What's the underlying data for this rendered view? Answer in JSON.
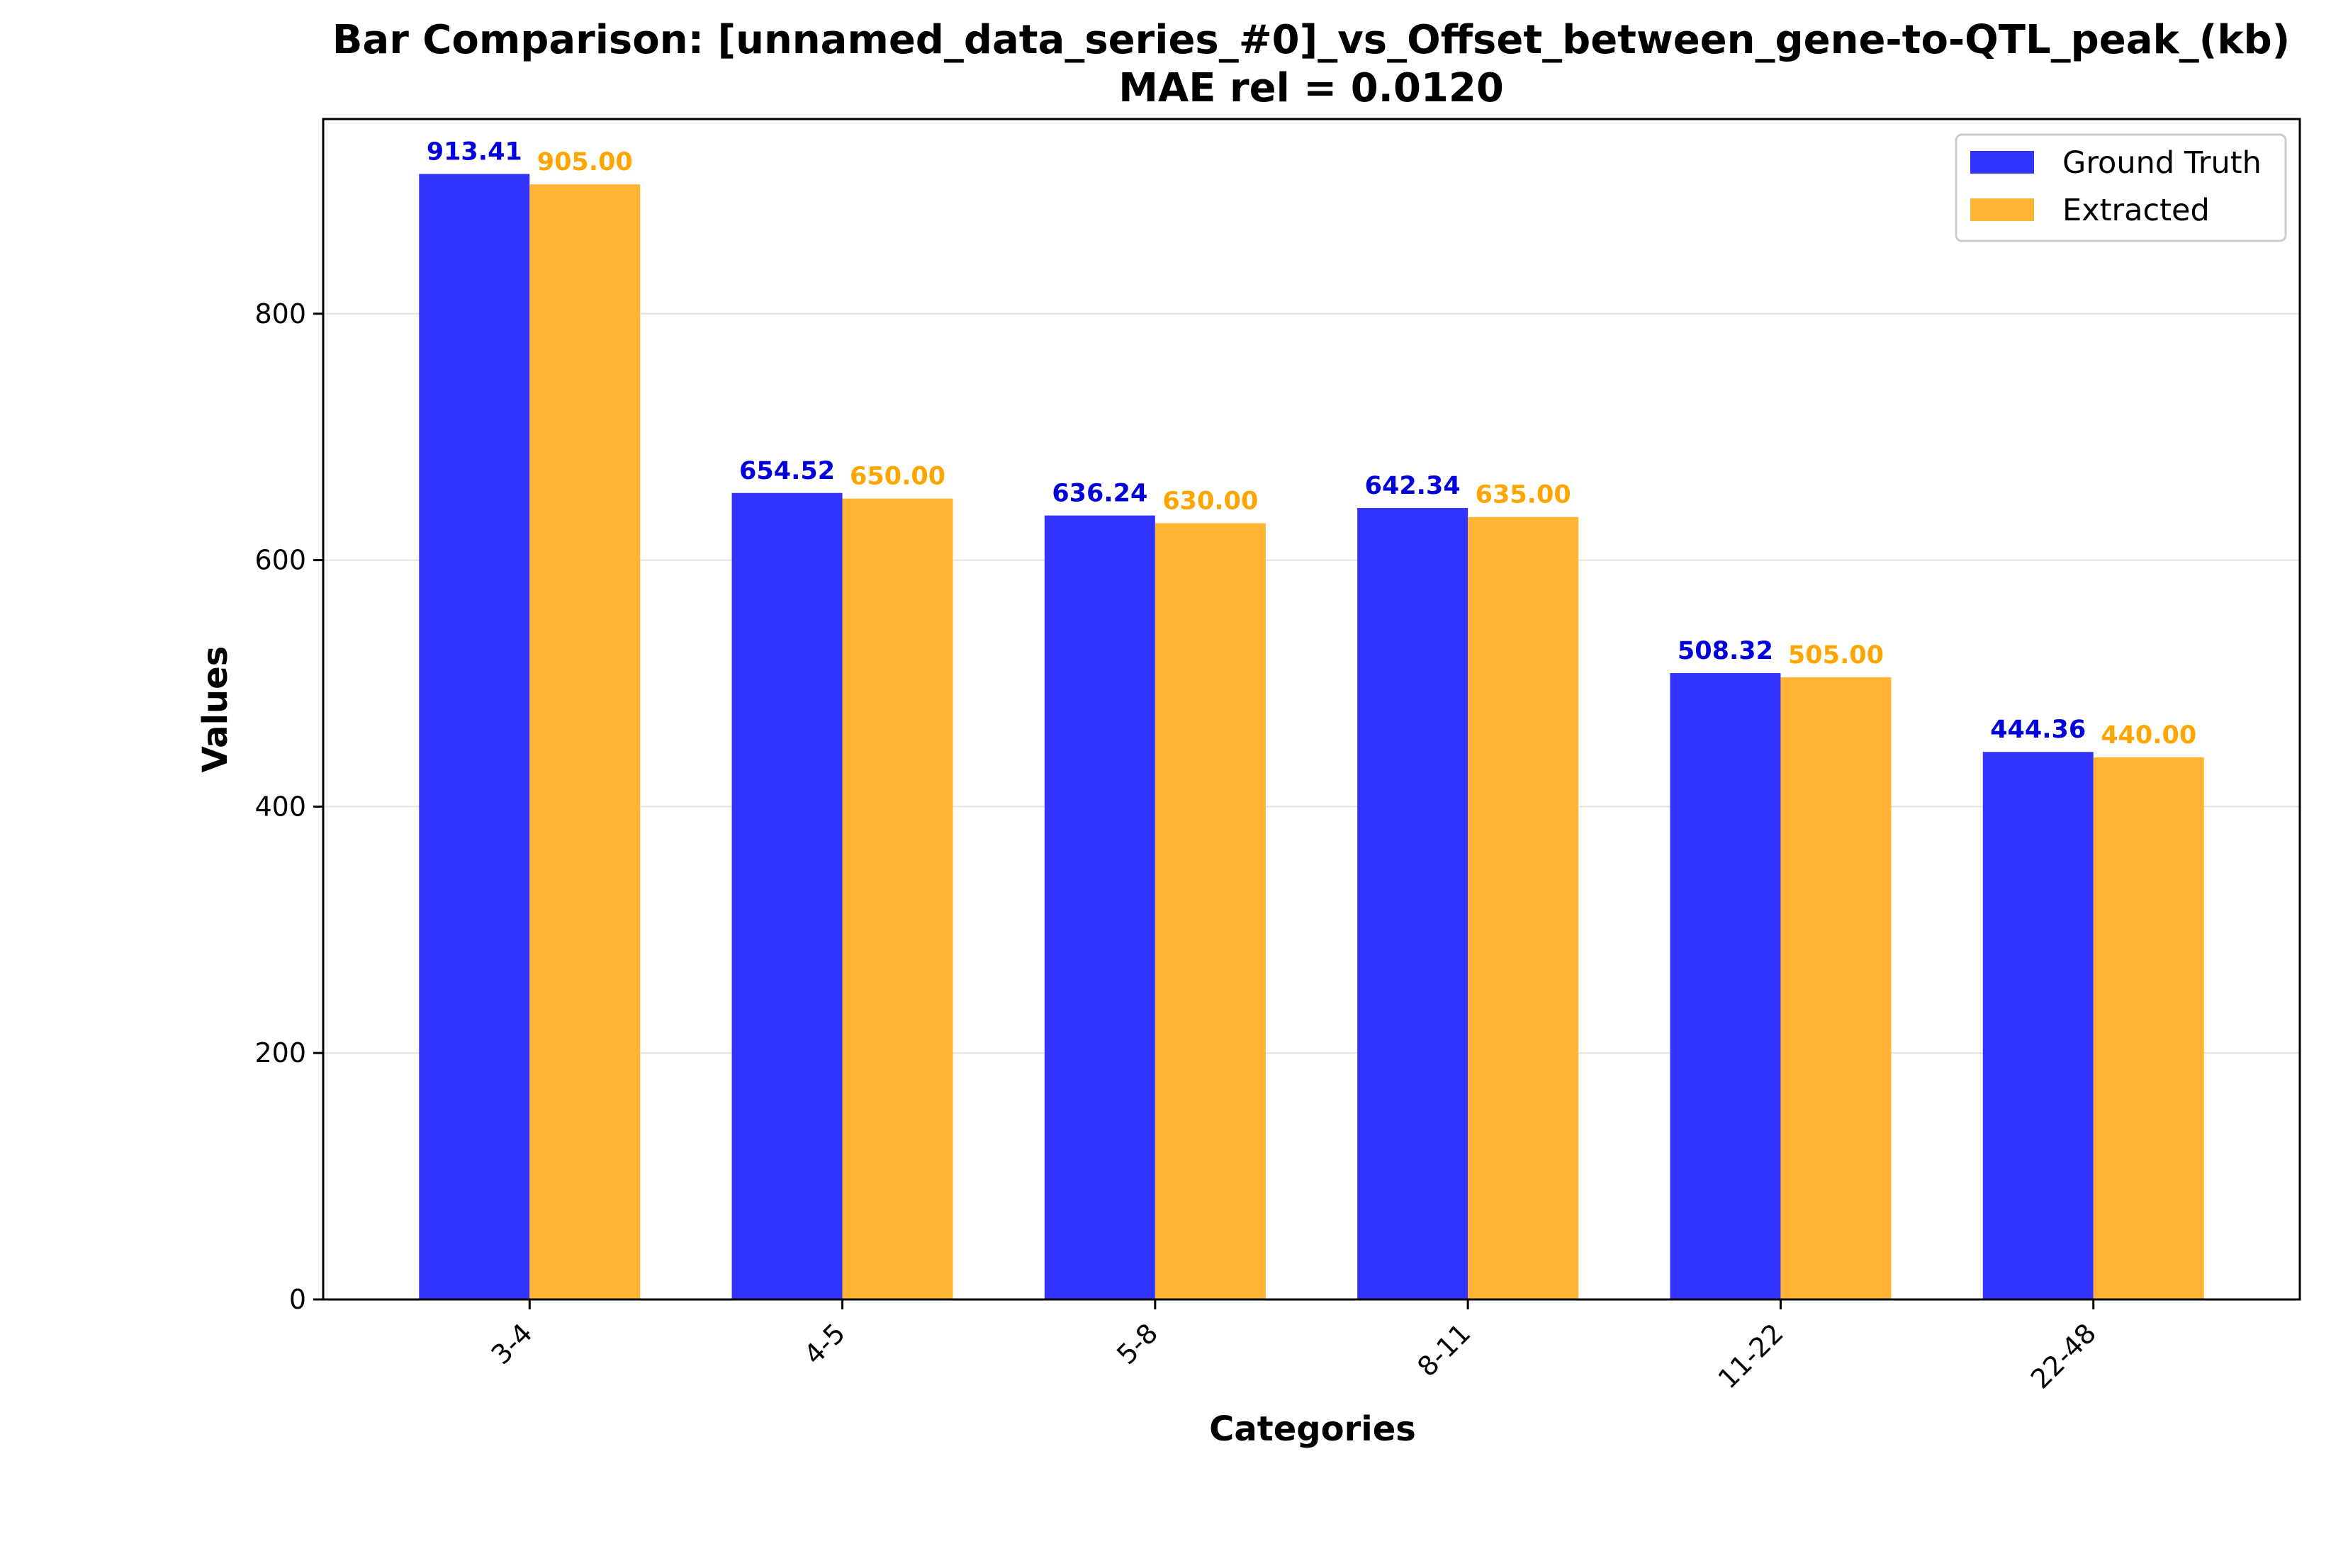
{
  "chart_data": {
    "type": "bar",
    "title": "Bar Comparison: [unnamed_data_series_#0]_vs_Offset_between_gene-to-QTL_peak_(kb)",
    "subtitle": "MAE rel = 0.0120",
    "xlabel": "Categories",
    "ylabel": "Values",
    "categories": [
      "3-4",
      "4-5",
      "5-8",
      "8-11",
      "11-22",
      "22-48"
    ],
    "series": [
      {
        "name": "Ground Truth",
        "color": "#3333ff",
        "label_color": "#0000dd",
        "values": [
          913.41,
          654.52,
          636.24,
          642.34,
          508.32,
          444.36
        ],
        "labels": [
          "913.41",
          "654.52",
          "636.24",
          "642.34",
          "508.32",
          "444.36"
        ]
      },
      {
        "name": "Extracted",
        "color": "#ffb533",
        "label_color": "#ffa500",
        "values": [
          905.0,
          650.0,
          630.0,
          635.0,
          505.0,
          440.0
        ],
        "labels": [
          "905.00",
          "650.00",
          "630.00",
          "635.00",
          "505.00",
          "440.00"
        ]
      }
    ],
    "ylim": [
      0,
      958
    ],
    "yticks": [
      0,
      200,
      400,
      600,
      800
    ],
    "grid": "y",
    "legend": "top-right"
  }
}
